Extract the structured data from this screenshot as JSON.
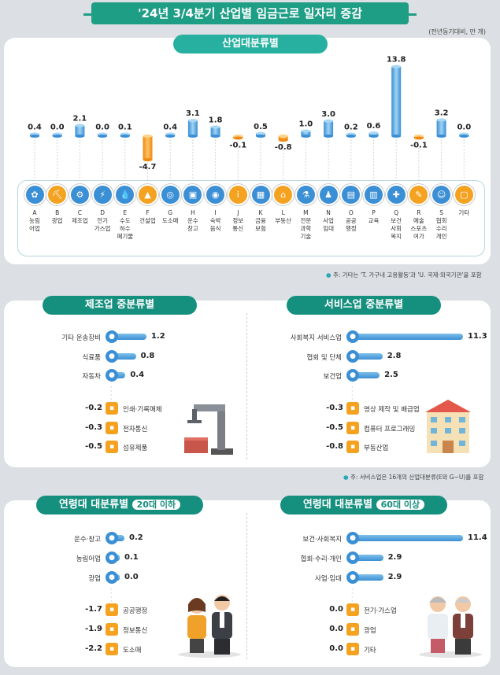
{
  "title": "'24년 3/4분기 산업별 임금근로 일자리 증감",
  "unit": "(전년동기대비, 만 개)",
  "colors": {
    "positive": "#3b8fd4",
    "negative": "#f49b1a",
    "accent": "#1f9e86",
    "neutral": "#f4a21f"
  },
  "chart_data": [
    {
      "type": "bar",
      "title": "산업대분류별",
      "categories": [
        "A 농림어업",
        "B 광업",
        "C 제조업",
        "D 전기가스업",
        "E 수도하수폐기물",
        "F 건설업",
        "G 도소매",
        "H 운수창고",
        "I 숙박음식",
        "J 정보통신",
        "K 금융보험",
        "L 부동산",
        "M 전문과학기술",
        "N 사업임대",
        "O 공공행정",
        "P 교육",
        "Q 보건사회복지",
        "R 예술스포츠여가",
        "S 협회수리개인",
        "기타"
      ],
      "values": [
        0.4,
        0.0,
        2.1,
        0.0,
        0.1,
        -4.7,
        0.4,
        3.1,
        1.8,
        -0.1,
        0.5,
        -0.8,
        1.0,
        3.0,
        0.2,
        0.6,
        13.8,
        -0.1,
        3.2,
        0.0
      ],
      "value_labels": [
        "0.4",
        "0.0",
        "2.1",
        "0.0",
        "0.1",
        "-4.7",
        "0.4",
        "3.1",
        "1.8",
        "-0.1",
        "0.5",
        "-0.8",
        "1.0",
        "3.0",
        "0.2",
        "0.6",
        "13.8",
        "-0.1",
        "3.2",
        "0.0"
      ],
      "ylim": [
        -4.7,
        13.8
      ]
    },
    {
      "type": "bar",
      "title": "제조업 중분류별",
      "top": [
        {
          "label": "기타 운송장비",
          "value": 1.2,
          "text": "1.2"
        },
        {
          "label": "식료품",
          "value": 0.8,
          "text": "0.8"
        },
        {
          "label": "자동차",
          "value": 0.4,
          "text": "0.4"
        }
      ],
      "bottom": [
        {
          "label": "인쇄·기록매체",
          "value": -0.2,
          "text": "-0.2"
        },
        {
          "label": "전자통신",
          "value": -0.3,
          "text": "-0.3"
        },
        {
          "label": "섬유제품",
          "value": -0.5,
          "text": "-0.5"
        }
      ]
    },
    {
      "type": "bar",
      "title": "서비스업 중분류별",
      "top": [
        {
          "label": "사회복지 서비스업",
          "value": 11.3,
          "text": "11.3"
        },
        {
          "label": "협회 및 단체",
          "value": 2.8,
          "text": "2.8"
        },
        {
          "label": "보건업",
          "value": 2.5,
          "text": "2.5"
        }
      ],
      "bottom": [
        {
          "label": "영상 제작 및 배급업",
          "value": -0.3,
          "text": "-0.3"
        },
        {
          "label": "컴퓨터 프로그래밍",
          "value": -0.5,
          "text": "-0.5"
        },
        {
          "label": "부동산업",
          "value": -0.8,
          "text": "-0.8"
        }
      ]
    },
    {
      "type": "bar",
      "title": "연령대 대분류별",
      "badge": "20대 이하",
      "top": [
        {
          "label": "운수·창고",
          "value": 0.2,
          "text": "0.2"
        },
        {
          "label": "농림어업",
          "value": 0.1,
          "text": "0.1"
        },
        {
          "label": "광업",
          "value": 0.0,
          "text": "0.0"
        }
      ],
      "bottom": [
        {
          "label": "공공행정",
          "value": -1.7,
          "text": "-1.7"
        },
        {
          "label": "정보통신",
          "value": -1.9,
          "text": "-1.9"
        },
        {
          "label": "도소매",
          "value": -2.2,
          "text": "-2.2"
        }
      ]
    },
    {
      "type": "bar",
      "title": "연령대 대분류별",
      "badge": "60대 이상",
      "top": [
        {
          "label": "보건·사회복지",
          "value": 11.4,
          "text": "11.4"
        },
        {
          "label": "협회·수리·개인",
          "value": 2.9,
          "text": "2.9"
        },
        {
          "label": "사업·임대",
          "value": 2.9,
          "text": "2.9"
        }
      ],
      "bottom": [
        {
          "label": "전기·가스업",
          "value": 0.0,
          "text": "0.0"
        },
        {
          "label": "광업",
          "value": 0.0,
          "text": "0.0"
        },
        {
          "label": "기타",
          "value": 0.0,
          "text": "0.0"
        }
      ]
    }
  ],
  "notes": {
    "n1": "주: 기타는 'T. 가구내 고용활동'과 'U. 국제·외국기관'을 포함",
    "n2": "주: 서비스업은 16개의 산업대분류(E와 G~U)를 포함"
  },
  "cat_labels": [
    "A\n농림\n어업",
    "B\n광업",
    "C\n제조업",
    "D\n전기\n가스업",
    "E\n수도\n하수\n폐기물",
    "F\n건설업",
    "G\n도소매",
    "H\n운수\n창고",
    "I\n숙박\n음식",
    "J\n정보\n통신",
    "K\n금융\n보험",
    "L\n부동산",
    "M\n전문\n과학\n기술",
    "N\n사업\n임대",
    "O\n공공\n행정",
    "P\n교육",
    "Q\n보건\n사회\n복지",
    "R\n예술\n스포츠\n여가",
    "S\n협회\n수리\n개인",
    "기타"
  ],
  "icons": [
    "sprout-icon",
    "mining-icon",
    "gear-icon",
    "bolt-icon",
    "water-icon",
    "crane-icon",
    "basket-icon",
    "truck-icon",
    "dish-icon",
    "info-icon",
    "bank-icon",
    "house-icon",
    "flask-icon",
    "people-icon",
    "document-icon",
    "book-icon",
    "medical-icon",
    "palette-icon",
    "group-icon",
    "misc-icon"
  ]
}
